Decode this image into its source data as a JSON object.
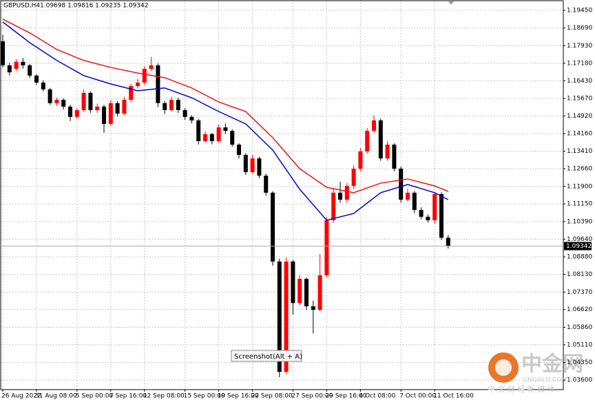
{
  "chart_data": {
    "type": "candlestick",
    "title": "GBPUSD,H4",
    "ohlc_label": "1.09698 1.09816 1.09235 1.09342",
    "categories": [
      "26 Aug 2022",
      null,
      null,
      null,
      null,
      "31 Aug 08:00",
      null,
      null,
      null,
      null,
      null,
      "5 Sep 00:00",
      null,
      null,
      null,
      null,
      "7 Sep 16:00",
      null,
      null,
      null,
      null,
      "12 Sep 08:00",
      null,
      null,
      null,
      null,
      null,
      "15 Sep 00:00",
      null,
      null,
      null,
      null,
      "19 Sep 16:00",
      null,
      null,
      null,
      null,
      "22 Sep 08:00",
      null,
      null,
      null,
      null,
      null,
      "27 Sep 00:00",
      null,
      null,
      null,
      null,
      "29 Sep 16:00",
      null,
      null,
      null,
      null,
      "4 Oct 08:00",
      null,
      null,
      null,
      null,
      null,
      "7 Oct 00:00",
      null,
      null,
      null,
      null,
      "11 Oct 16:00",
      null,
      null
    ],
    "open": [
      1.1812,
      1.1709,
      1.1694,
      1.1724,
      1.1709,
      1.1665,
      1.1635,
      1.1606,
      1.1547,
      1.1561,
      1.1532,
      1.1488,
      1.1517,
      1.1591,
      1.1517,
      1.1532,
      1.1458,
      1.1547,
      1.1502,
      1.1561,
      1.162,
      1.1635,
      1.1694,
      1.1709,
      1.1547,
      1.1517,
      1.1561,
      1.1517,
      1.1488,
      1.1473,
      1.1384,
      1.1414,
      1.1384,
      1.1443,
      1.1428,
      1.1369,
      1.1325,
      1.1251,
      1.131,
      1.1236,
      1.1163,
      1.0868,
      1.0395,
      1.0868,
      1.069,
      1.0794,
      1.0676,
      1.0661,
      1.0809,
      1.1045,
      1.1163,
      1.1133,
      1.1192,
      1.1266,
      1.134,
      1.1428,
      1.1473,
      1.131,
      1.1369,
      1.1266,
      1.1133,
      1.1163,
      1.1089,
      1.106,
      1.1045,
      1.1157,
      1.09698
    ],
    "high": [
      1.184,
      1.172,
      1.1735,
      1.174,
      1.1715,
      1.1672,
      1.1645,
      1.1612,
      1.157,
      1.1568,
      1.154,
      1.1525,
      1.1605,
      1.1598,
      1.1545,
      1.154,
      1.156,
      1.1555,
      1.1575,
      1.163,
      1.165,
      1.1705,
      1.1745,
      1.1718,
      1.1555,
      1.1575,
      1.157,
      1.1525,
      1.1495,
      1.148,
      1.1425,
      1.142,
      1.1455,
      1.146,
      1.1435,
      1.1375,
      1.1332,
      1.1325,
      1.1318,
      1.1245,
      1.117,
      1.088,
      1.0885,
      1.0875,
      1.081,
      1.08,
      1.07,
      1.09,
      1.106,
      1.118,
      1.121,
      1.1205,
      1.128,
      1.1355,
      1.144,
      1.1495,
      1.148,
      1.1385,
      1.1375,
      1.1275,
      1.118,
      1.117,
      1.11,
      1.107,
      1.1165,
      1.1165,
      1.09816
    ],
    "low": [
      1.17,
      1.1665,
      1.1685,
      1.1695,
      1.1655,
      1.1625,
      1.1598,
      1.154,
      1.1535,
      1.152,
      1.147,
      1.148,
      1.151,
      1.1505,
      1.1505,
      1.142,
      1.145,
      1.149,
      1.1495,
      1.155,
      1.161,
      1.1625,
      1.1685,
      1.153,
      1.15,
      1.151,
      1.1505,
      1.1475,
      1.146,
      1.137,
      1.1378,
      1.137,
      1.1378,
      1.1415,
      1.136,
      1.131,
      1.124,
      1.1245,
      1.1225,
      1.115,
      1.085,
      1.0372,
      1.0385,
      1.064,
      1.068,
      1.066,
      1.056,
      1.0655,
      1.08,
      1.1035,
      1.112,
      1.112,
      1.118,
      1.1255,
      1.133,
      1.142,
      1.13,
      1.13,
      1.1255,
      1.112,
      1.1125,
      1.1075,
      1.105,
      1.1035,
      1.103,
      1.096,
      1.09235
    ],
    "close": [
      1.1709,
      1.1679,
      1.1724,
      1.1709,
      1.1665,
      1.1635,
      1.1606,
      1.1547,
      1.1561,
      1.1532,
      1.1488,
      1.1517,
      1.1591,
      1.1517,
      1.1532,
      1.1458,
      1.1547,
      1.1502,
      1.1561,
      1.162,
      1.1635,
      1.1694,
      1.1709,
      1.1547,
      1.1517,
      1.1561,
      1.1517,
      1.1488,
      1.1473,
      1.1384,
      1.1414,
      1.1384,
      1.1443,
      1.1428,
      1.1369,
      1.1325,
      1.1251,
      1.131,
      1.1236,
      1.1163,
      1.0868,
      1.0395,
      1.0868,
      1.069,
      1.0794,
      1.0676,
      1.0661,
      1.0809,
      1.1045,
      1.1163,
      1.1133,
      1.1192,
      1.1266,
      1.134,
      1.1428,
      1.1473,
      1.131,
      1.1369,
      1.1266,
      1.1133,
      1.1163,
      1.1089,
      1.106,
      1.1045,
      1.1157,
      1.09698,
      1.09342
    ],
    "up_color": "#ff0000",
    "down_color": "#000000",
    "lines": [
      {
        "color": "#ee1111",
        "x": [
          0,
          4,
          8,
          12,
          16,
          20,
          24,
          28,
          32,
          36,
          40,
          44,
          48,
          52,
          56,
          60,
          64,
          66
        ],
        "values": [
          1.1907,
          1.1848,
          1.1777,
          1.173,
          1.17,
          1.1676,
          1.1656,
          1.1612,
          1.1552,
          1.1511,
          1.1399,
          1.1266,
          1.1186,
          1.1163,
          1.1204,
          1.1222,
          1.1192,
          1.1169
        ]
      },
      {
        "color": "#0000cc",
        "x": [
          0,
          4,
          8,
          12,
          16,
          20,
          24,
          28,
          32,
          36,
          40,
          44,
          48,
          52,
          56,
          60,
          64,
          66
        ],
        "values": [
          1.1895,
          1.1806,
          1.173,
          1.1665,
          1.1629,
          1.16,
          1.1612,
          1.157,
          1.1511,
          1.1458,
          1.1346,
          1.1178,
          1.1045,
          1.1074,
          1.1163,
          1.1198,
          1.1163,
          1.1133
        ]
      }
    ],
    "last_price": {
      "value": 1.09342,
      "label": "1.09342"
    },
    "ylim": [
      1.0319,
      1.1989
    ],
    "yticks": [
      {
        "value": 1.1945,
        "label": "1.19450"
      },
      {
        "value": 1.1869,
        "label": "1.18690"
      },
      {
        "value": 1.1793,
        "label": "1.17930"
      },
      {
        "value": 1.1718,
        "label": "1.17180"
      },
      {
        "value": 1.1643,
        "label": "1.16430"
      },
      {
        "value": 1.1567,
        "label": "1.15670"
      },
      {
        "value": 1.1492,
        "label": "1.14920"
      },
      {
        "value": 1.1416,
        "label": "1.14160"
      },
      {
        "value": 1.1341,
        "label": "1.13410"
      },
      {
        "value": 1.1266,
        "label": "1.12660"
      },
      {
        "value": 1.119,
        "label": "1.11900"
      },
      {
        "value": 1.1115,
        "label": "1.11150"
      },
      {
        "value": 1.1039,
        "label": "1.10390"
      },
      {
        "value": 1.0964,
        "label": "1.09640"
      },
      {
        "value": 1.0888,
        "label": "1.08880"
      },
      {
        "value": 1.0813,
        "label": "1.08130"
      },
      {
        "value": 1.0737,
        "label": "1.07370"
      },
      {
        "value": 1.0662,
        "label": "1.06620"
      },
      {
        "value": 1.0586,
        "label": "1.05860"
      },
      {
        "value": 1.0511,
        "label": "1.05110"
      },
      {
        "value": 1.0435,
        "label": "1.04350"
      },
      {
        "value": 1.036,
        "label": "1.03600"
      }
    ],
    "grid": true,
    "annotations": [
      "Screenshot(Alt + A)",
      "中金网",
      "CNGOLD.COM",
      "中 文 财 经 新 媒 体"
    ]
  }
}
